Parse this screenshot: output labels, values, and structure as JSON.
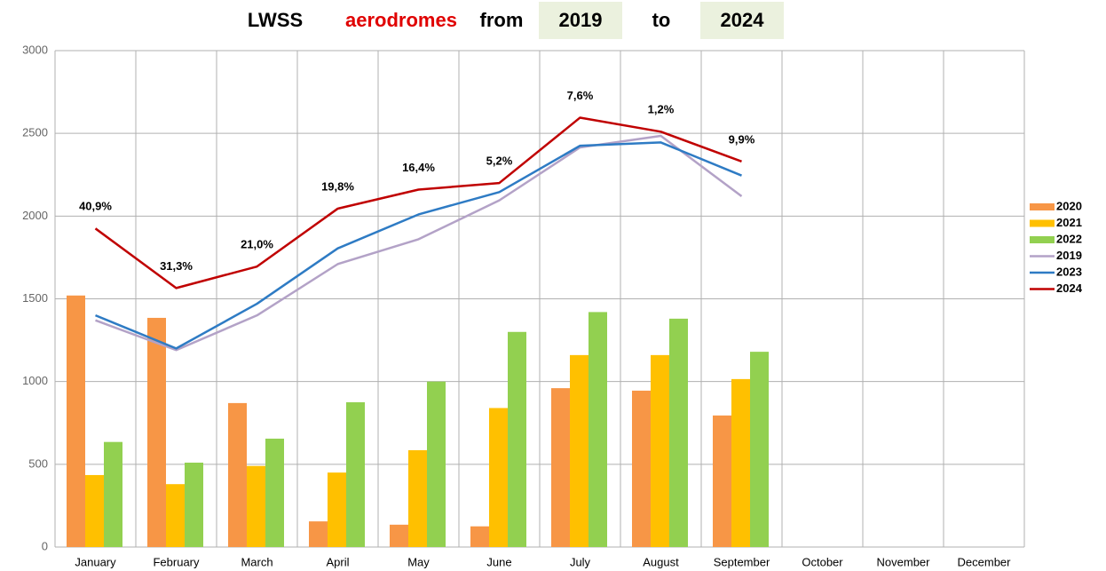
{
  "chart_data": {
    "type": "bar",
    "title_parts": [
      "LWSS",
      "aerodromes",
      "from",
      "2019",
      "to",
      "2024"
    ],
    "categories": [
      "January",
      "February",
      "March",
      "April",
      "May",
      "June",
      "July",
      "August",
      "September",
      "October",
      "November",
      "December"
    ],
    "series": [
      {
        "name": "2020",
        "type": "bar",
        "color": "#f79646",
        "values": [
          1520,
          1385,
          870,
          155,
          135,
          125,
          960,
          945,
          795,
          null,
          null,
          null
        ]
      },
      {
        "name": "2021",
        "type": "bar",
        "color": "#ffc000",
        "values": [
          435,
          380,
          490,
          450,
          585,
          840,
          1160,
          1160,
          1015,
          null,
          null,
          null
        ]
      },
      {
        "name": "2022",
        "type": "bar",
        "color": "#92d050",
        "values": [
          635,
          510,
          655,
          875,
          1000,
          1300,
          1420,
          1380,
          1180,
          null,
          null,
          null
        ]
      },
      {
        "name": "2019",
        "type": "line",
        "color": "#b3a2c7",
        "values": [
          1370,
          1190,
          1400,
          1710,
          1860,
          2095,
          2415,
          2485,
          2120,
          null,
          null,
          null
        ]
      },
      {
        "name": "2023",
        "type": "line",
        "color": "#2e7bc4",
        "values": [
          1400,
          1200,
          1470,
          1805,
          2010,
          2145,
          2425,
          2445,
          2245,
          null,
          null,
          null
        ]
      },
      {
        "name": "2024",
        "type": "line",
        "color": "#c00000",
        "values": [
          1925,
          1565,
          1695,
          2045,
          2160,
          2200,
          2595,
          2510,
          2330,
          null,
          null,
          null
        ]
      }
    ],
    "annotations": [
      "40,9%",
      "31,3%",
      "21,0%",
      "19,8%",
      "16,4%",
      "5,2%",
      "7,6%",
      "1,2%",
      "9,9%"
    ],
    "ylim": [
      0,
      3000
    ],
    "yticks": [
      0,
      500,
      1000,
      1500,
      2000,
      2500,
      3000
    ],
    "grid": true,
    "legend": "right"
  }
}
